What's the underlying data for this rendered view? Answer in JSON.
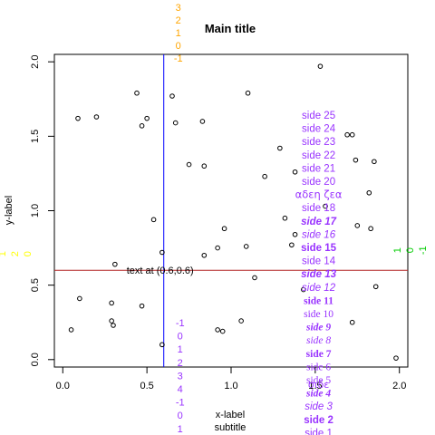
{
  "chart_data": {
    "type": "scatter",
    "title": "Main title",
    "xlabel": "x-label",
    "ylabel": "y-label",
    "subtitle": "subtitle",
    "xlim": [
      -0.05,
      2.05
    ],
    "ylim": [
      -0.05,
      2.05
    ],
    "x_ticks": [
      0.0,
      0.5,
      1.0,
      1.5,
      2.0
    ],
    "x_tick_labels": [
      "0.0",
      "0.5",
      "1.0",
      "1.5",
      "2.0"
    ],
    "y_ticks": [
      0.0,
      0.5,
      1.0,
      1.5,
      2.0
    ],
    "y_tick_labels": [
      "0.0",
      "0.5",
      "1.0",
      "1.5",
      "2.0"
    ],
    "grid": false,
    "legend": "none",
    "points": [
      {
        "x": 0.05,
        "y": 0.2
      },
      {
        "x": 0.09,
        "y": 1.62
      },
      {
        "x": 0.1,
        "y": 0.41
      },
      {
        "x": 0.2,
        "y": 1.63
      },
      {
        "x": 0.29,
        "y": 0.26
      },
      {
        "x": 0.29,
        "y": 0.38
      },
      {
        "x": 0.3,
        "y": 0.23
      },
      {
        "x": 0.31,
        "y": 0.64
      },
      {
        "x": 0.44,
        "y": 1.79
      },
      {
        "x": 0.47,
        "y": 0.36
      },
      {
        "x": 0.47,
        "y": 1.57
      },
      {
        "x": 0.5,
        "y": 1.62
      },
      {
        "x": 0.54,
        "y": 0.94
      },
      {
        "x": 0.59,
        "y": 0.1
      },
      {
        "x": 0.59,
        "y": 0.72
      },
      {
        "x": 0.65,
        "y": 1.77
      },
      {
        "x": 0.67,
        "y": 1.59
      },
      {
        "x": 0.75,
        "y": 1.31
      },
      {
        "x": 0.83,
        "y": 1.6
      },
      {
        "x": 0.84,
        "y": 1.3
      },
      {
        "x": 0.84,
        "y": 0.7
      },
      {
        "x": 0.92,
        "y": 0.75
      },
      {
        "x": 0.92,
        "y": 0.2
      },
      {
        "x": 0.95,
        "y": 0.19
      },
      {
        "x": 0.96,
        "y": 0.88
      },
      {
        "x": 1.06,
        "y": 0.26
      },
      {
        "x": 1.09,
        "y": 0.76
      },
      {
        "x": 1.1,
        "y": 1.79
      },
      {
        "x": 1.14,
        "y": 0.55
      },
      {
        "x": 1.2,
        "y": 1.23
      },
      {
        "x": 1.29,
        "y": 1.42
      },
      {
        "x": 1.32,
        "y": 0.95
      },
      {
        "x": 1.36,
        "y": 0.77
      },
      {
        "x": 1.38,
        "y": 1.26
      },
      {
        "x": 1.38,
        "y": 0.84
      },
      {
        "x": 1.43,
        "y": 0.47
      },
      {
        "x": 1.53,
        "y": 1.97
      },
      {
        "x": 1.56,
        "y": 1.03
      },
      {
        "x": 1.69,
        "y": 1.51
      },
      {
        "x": 1.72,
        "y": 1.51
      },
      {
        "x": 1.72,
        "y": 0.25
      },
      {
        "x": 1.74,
        "y": 1.34
      },
      {
        "x": 1.75,
        "y": 0.9
      },
      {
        "x": 1.82,
        "y": 1.12
      },
      {
        "x": 1.83,
        "y": 0.88
      },
      {
        "x": 1.85,
        "y": 1.33
      },
      {
        "x": 1.86,
        "y": 0.49
      },
      {
        "x": 1.98,
        "y": 0.01
      }
    ],
    "vertical_line": {
      "x": 0.6,
      "color": "#0000ff"
    },
    "horizontal_line": {
      "y": 0.6,
      "color": "#b22222"
    },
    "point_annotation": {
      "text": "text at (0.6,0.6)",
      "x": 0.6,
      "y": 0.6
    },
    "top_margin_labels": {
      "color": "#ffa500",
      "labels": [
        "3",
        "2",
        "1",
        "0",
        "-1"
      ]
    },
    "left_margin_labels": {
      "color": "#ffff00",
      "labels": [
        "1",
        "2",
        "0"
      ]
    },
    "right_margin_labels": {
      "color": "#00cc00",
      "labels": [
        "1",
        "0",
        "-1"
      ]
    },
    "bottom_margin_labels": {
      "color": "#9933ff",
      "labels": [
        "-1",
        "0",
        "1",
        "2",
        "3",
        "4",
        "-1",
        "0",
        "1"
      ]
    },
    "side_labels": {
      "color": "#9933ff",
      "labels": [
        {
          "text": "side 25",
          "style": "normal"
        },
        {
          "text": "side 24",
          "style": "normal"
        },
        {
          "text": "side 23",
          "style": "normal"
        },
        {
          "text": "side 22",
          "style": "normal"
        },
        {
          "text": "side 21",
          "style": "normal"
        },
        {
          "text": "side 20",
          "style": "normal"
        },
        {
          "text": "αδεη ζεα",
          "style": "symbol"
        },
        {
          "text": "side 18",
          "style": "normal"
        },
        {
          "text": "side 17",
          "style": "bold-italic"
        },
        {
          "text": "side 16",
          "style": "italic"
        },
        {
          "text": "side 15",
          "style": "bold"
        },
        {
          "text": "side 14",
          "style": "normal"
        },
        {
          "text": "side 13",
          "style": "bold-italic"
        },
        {
          "text": "side 12",
          "style": "italic"
        },
        {
          "text": "side 11",
          "style": "bold-serif"
        },
        {
          "text": "side 10",
          "style": "serif"
        },
        {
          "text": "side 9",
          "style": "bold-italic-serif"
        },
        {
          "text": "side 8",
          "style": "italic-serif"
        },
        {
          "text": "side 7",
          "style": "bold-serif"
        },
        {
          "text": "side 6",
          "style": "serif"
        },
        {
          "text": "side 5",
          "style": "serif"
        },
        {
          "text": "side 4",
          "style": "bold-italic-serif"
        },
        {
          "text": "side 3",
          "style": "italic"
        },
        {
          "text": "side 2",
          "style": "bold"
        },
        {
          "text": "side 1",
          "style": "normal"
        }
      ]
    },
    "side_overlay": {
      "text": "σιδε",
      "style": "symbol"
    }
  }
}
